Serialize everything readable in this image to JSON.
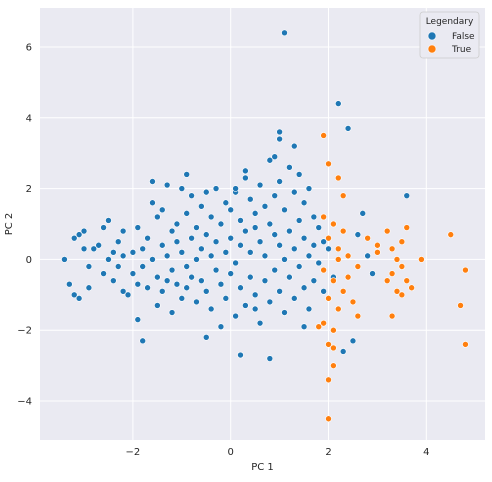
{
  "chart_data": {
    "type": "scatter",
    "xlabel": "PC 1",
    "ylabel": "PC 2",
    "xlim": [
      -3.9,
      5.2
    ],
    "ylim": [
      -5.1,
      7.1
    ],
    "xticks": [
      -2,
      0,
      2,
      4
    ],
    "yticks": [
      -4,
      -2,
      0,
      2,
      4,
      6
    ],
    "grid": true,
    "background": "#eaeaf2",
    "legend": {
      "title": "Legendary",
      "placement": "top-right",
      "entries": [
        "False",
        "True"
      ]
    },
    "series": [
      {
        "name": "False",
        "color": "#1f77b4",
        "points": [
          [
            -3.4,
            0.0
          ],
          [
            -3.2,
            0.6
          ],
          [
            -3.1,
            0.7
          ],
          [
            -3.0,
            0.8
          ],
          [
            -3.3,
            -0.7
          ],
          [
            -3.2,
            -1.0
          ],
          [
            -3.1,
            -1.1
          ],
          [
            -3.0,
            0.3
          ],
          [
            -2.9,
            -0.2
          ],
          [
            -2.8,
            0.3
          ],
          [
            -2.7,
            0.4
          ],
          [
            -2.6,
            -0.4
          ],
          [
            -2.5,
            0.0
          ],
          [
            -2.5,
            1.1
          ],
          [
            -2.4,
            0.2
          ],
          [
            -2.4,
            -0.6
          ],
          [
            -2.3,
            0.5
          ],
          [
            -2.3,
            -0.2
          ],
          [
            -2.2,
            0.8
          ],
          [
            -2.2,
            -0.9
          ],
          [
            -2.1,
            -1.0
          ],
          [
            -2.0,
            0.2
          ],
          [
            -2.0,
            -0.4
          ],
          [
            -1.9,
            0.9
          ],
          [
            -1.9,
            -0.7
          ],
          [
            -1.9,
            -1.7
          ],
          [
            -1.8,
            0.3
          ],
          [
            -1.8,
            -0.2
          ],
          [
            -1.7,
            0.6
          ],
          [
            -1.7,
            -0.8
          ],
          [
            -1.6,
            1.6
          ],
          [
            -1.6,
            0.0
          ],
          [
            -1.5,
            1.2
          ],
          [
            -1.5,
            -0.5
          ],
          [
            -1.5,
            -1.3
          ],
          [
            -1.4,
            1.4
          ],
          [
            -1.4,
            0.4
          ],
          [
            -1.4,
            -0.9
          ],
          [
            -1.3,
            2.1
          ],
          [
            -1.3,
            0.1
          ],
          [
            -1.2,
            0.8
          ],
          [
            -1.2,
            -0.3
          ],
          [
            -1.2,
            -1.5
          ],
          [
            -1.1,
            1.0
          ],
          [
            -1.1,
            0.5
          ],
          [
            -1.1,
            -0.7
          ],
          [
            -1.0,
            2.0
          ],
          [
            -1.0,
            0.2
          ],
          [
            -1.0,
            -1.1
          ],
          [
            -0.9,
            1.3
          ],
          [
            -0.9,
            -0.2
          ],
          [
            -0.9,
            -0.8
          ],
          [
            -0.8,
            1.8
          ],
          [
            -0.8,
            0.6
          ],
          [
            -0.8,
            -0.5
          ],
          [
            -0.7,
            0.9
          ],
          [
            -0.7,
            0.0
          ],
          [
            -0.7,
            -1.2
          ],
          [
            -0.6,
            1.5
          ],
          [
            -0.6,
            0.3
          ],
          [
            -0.6,
            -0.6
          ],
          [
            -0.5,
            1.9
          ],
          [
            -0.5,
            0.7
          ],
          [
            -0.5,
            -0.9
          ],
          [
            -0.4,
            1.2
          ],
          [
            -0.4,
            0.1
          ],
          [
            -0.4,
            -1.4
          ],
          [
            -0.3,
            2.0
          ],
          [
            -0.3,
            0.5
          ],
          [
            -0.3,
            -0.3
          ],
          [
            -0.2,
            1.0
          ],
          [
            -0.2,
            -0.7
          ],
          [
            -0.1,
            1.6
          ],
          [
            -0.1,
            0.2
          ],
          [
            -0.1,
            -1.1
          ],
          [
            0.0,
            1.4
          ],
          [
            0.0,
            0.6
          ],
          [
            0.0,
            -0.4
          ],
          [
            0.1,
            1.9
          ],
          [
            0.1,
            -0.1
          ],
          [
            0.1,
            -1.6
          ],
          [
            0.2,
            1.1
          ],
          [
            0.2,
            0.4
          ],
          [
            0.2,
            -0.8
          ],
          [
            0.3,
            2.3
          ],
          [
            0.3,
            0.8
          ],
          [
            0.3,
            -1.3
          ],
          [
            0.4,
            1.7
          ],
          [
            0.4,
            0.2
          ],
          [
            0.4,
            -0.5
          ],
          [
            0.5,
            1.3
          ],
          [
            0.5,
            0.9
          ],
          [
            0.5,
            -1.0
          ],
          [
            0.6,
            2.1
          ],
          [
            0.6,
            0.5
          ],
          [
            0.6,
            -1.8
          ],
          [
            0.7,
            1.5
          ],
          [
            0.7,
            0.1
          ],
          [
            0.7,
            -0.6
          ],
          [
            0.8,
            2.8
          ],
          [
            0.8,
            1.0
          ],
          [
            0.8,
            -1.2
          ],
          [
            0.9,
            1.8
          ],
          [
            0.9,
            0.7
          ],
          [
            0.9,
            -0.3
          ],
          [
            1.0,
            3.4
          ],
          [
            1.0,
            2.2
          ],
          [
            1.0,
            0.4
          ],
          [
            1.0,
            -0.9
          ],
          [
            1.1,
            1.4
          ],
          [
            1.1,
            0.0
          ],
          [
            1.1,
            -1.5
          ],
          [
            1.2,
            2.6
          ],
          [
            1.2,
            0.8
          ],
          [
            1.2,
            -0.5
          ],
          [
            1.3,
            1.9
          ],
          [
            1.3,
            0.3
          ],
          [
            1.3,
            -1.1
          ],
          [
            1.4,
            2.4
          ],
          [
            1.4,
            1.1
          ],
          [
            1.4,
            -0.2
          ],
          [
            1.5,
            1.6
          ],
          [
            1.5,
            0.6
          ],
          [
            1.5,
            -0.8
          ],
          [
            1.6,
            2.0
          ],
          [
            1.6,
            0.1
          ],
          [
            1.6,
            -1.4
          ],
          [
            1.7,
            1.2
          ],
          [
            1.7,
            0.4
          ],
          [
            1.7,
            -0.6
          ],
          [
            1.8,
            0.9
          ],
          [
            1.8,
            -0.1
          ],
          [
            1.9,
            0.5
          ],
          [
            1.9,
            -0.9
          ],
          [
            0.2,
            -2.7
          ],
          [
            0.8,
            -2.8
          ],
          [
            -0.5,
            -2.2
          ],
          [
            -1.8,
            -2.3
          ],
          [
            1.1,
            6.4
          ],
          [
            2.2,
            4.4
          ],
          [
            2.4,
            3.7
          ],
          [
            1.3,
            3.2
          ],
          [
            2.7,
            1.3
          ],
          [
            3.6,
            1.8
          ],
          [
            2.3,
            -2.6
          ],
          [
            2.5,
            -2.3
          ],
          [
            2.6,
            0.7
          ],
          [
            2.8,
            0.1
          ],
          [
            2.9,
            -0.4
          ],
          [
            1.0,
            3.6
          ],
          [
            0.9,
            2.9
          ],
          [
            -1.6,
            2.2
          ],
          [
            -0.9,
            2.4
          ],
          [
            0.1,
            2.0
          ],
          [
            0.3,
            2.5
          ],
          [
            -2.9,
            -0.8
          ],
          [
            -2.6,
            0.9
          ],
          [
            -2.2,
            0.1
          ],
          [
            -1.3,
            -0.6
          ],
          [
            -0.2,
            -1.9
          ],
          [
            0.5,
            -1.4
          ],
          [
            1.5,
            -1.9
          ],
          [
            2.0,
            0.3
          ],
          [
            2.1,
            -0.5
          ]
        ]
      },
      {
        "name": "True",
        "color": "#ff7f0e",
        "points": [
          [
            1.9,
            3.5
          ],
          [
            2.0,
            2.7
          ],
          [
            2.2,
            2.3
          ],
          [
            2.3,
            1.8
          ],
          [
            1.9,
            1.2
          ],
          [
            2.1,
            1.0
          ],
          [
            2.3,
            0.8
          ],
          [
            2.0,
            0.6
          ],
          [
            2.2,
            0.3
          ],
          [
            2.4,
            0.1
          ],
          [
            1.9,
            -0.3
          ],
          [
            2.1,
            -0.6
          ],
          [
            2.3,
            -0.9
          ],
          [
            2.0,
            -1.1
          ],
          [
            2.2,
            -1.4
          ],
          [
            1.9,
            -1.8
          ],
          [
            2.1,
            -2.0
          ],
          [
            2.0,
            -2.4
          ],
          [
            2.1,
            -3.0
          ],
          [
            2.0,
            -3.4
          ],
          [
            2.0,
            -4.5
          ],
          [
            2.4,
            -0.5
          ],
          [
            2.5,
            -1.2
          ],
          [
            2.6,
            -1.6
          ],
          [
            2.8,
            0.6
          ],
          [
            3.0,
            0.4
          ],
          [
            3.2,
            0.8
          ],
          [
            3.3,
            0.3
          ],
          [
            3.4,
            0.0
          ],
          [
            3.5,
            -0.2
          ],
          [
            3.6,
            -0.6
          ],
          [
            3.7,
            -0.8
          ],
          [
            3.4,
            -0.9
          ],
          [
            3.5,
            0.5
          ],
          [
            3.3,
            -0.4
          ],
          [
            3.9,
            0.0
          ],
          [
            3.2,
            -0.6
          ],
          [
            3.5,
            -1.0
          ],
          [
            4.5,
            0.7
          ],
          [
            4.7,
            -1.3
          ],
          [
            4.8,
            -0.3
          ],
          [
            4.8,
            -2.4
          ],
          [
            3.3,
            -1.6
          ],
          [
            3.0,
            0.2
          ],
          [
            2.6,
            -0.2
          ],
          [
            2.1,
            -2.5
          ],
          [
            1.8,
            -1.9
          ],
          [
            2.2,
            0.0
          ],
          [
            3.6,
            0.9
          ]
        ]
      }
    ]
  }
}
